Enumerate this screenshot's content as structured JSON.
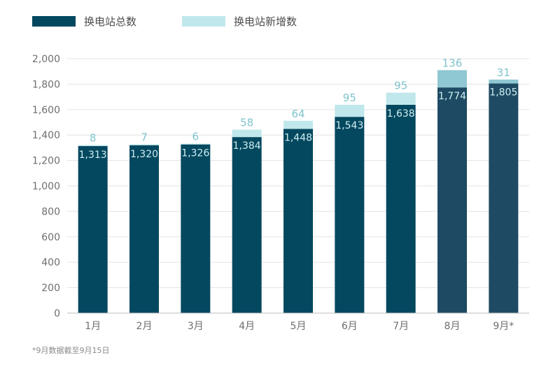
{
  "chart_data": {
    "type": "bar",
    "stacked": true,
    "categories": [
      "1月",
      "2月",
      "3月",
      "4月",
      "5月",
      "6月",
      "7月",
      "8月",
      "9月*"
    ],
    "series": [
      {
        "name": "换电站总数",
        "values": [
          1313,
          1320,
          1326,
          1384,
          1448,
          1543,
          1638,
          1774,
          1805
        ]
      },
      {
        "name": "换电站新增数",
        "values": [
          8,
          7,
          6,
          58,
          64,
          95,
          95,
          136,
          31
        ]
      }
    ],
    "value_labels": {
      "total": [
        "1,313",
        "1,320",
        "1,326",
        "1,384",
        "1,448",
        "1,543",
        "1,638",
        "1,774",
        "1,805"
      ],
      "added": [
        "8",
        "7",
        "6",
        "58",
        "64",
        "95",
        "95",
        "136",
        "31"
      ]
    },
    "yticks": [
      "0",
      "200",
      "400",
      "600",
      "800",
      "1,000",
      "1,200",
      "1,400",
      "1,600",
      "1,800",
      "2,000"
    ],
    "ylim": [
      0,
      2000
    ],
    "grid": true,
    "legend_position": "top-left",
    "colors": {
      "total": "#04485f",
      "total_highlight": "#1e4b63",
      "added": "#c0e8ec",
      "added_highlight": "#8fc7d2",
      "grid": "#e3e3e3",
      "axis": "#bdbdbd"
    },
    "footnote": "*9月数据截至9月15日"
  }
}
